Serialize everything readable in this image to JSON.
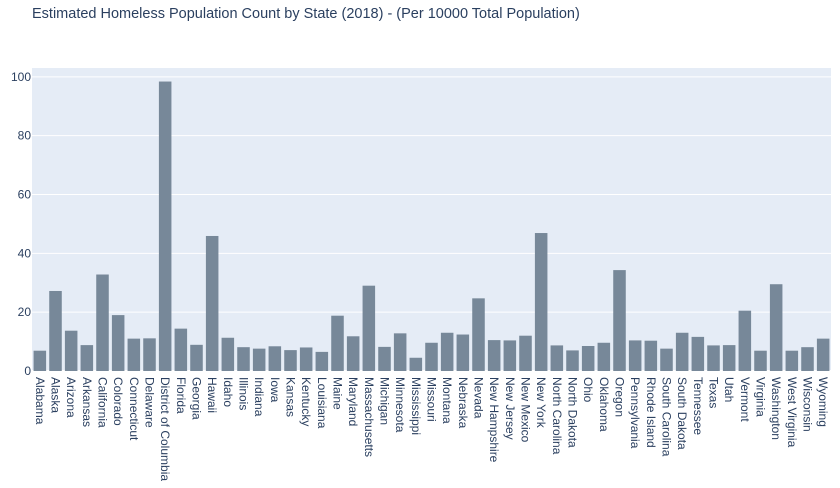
{
  "chart_data": {
    "type": "bar",
    "title": "Estimated Homeless Population Count by State (2018) - (Per 10000 Total Population)",
    "xlabel": "",
    "ylabel": "",
    "ylim": [
      0,
      103
    ],
    "yticks": [
      0,
      20,
      40,
      60,
      80,
      100
    ],
    "grid": true,
    "legend": "none",
    "bar_color": "#778899",
    "plot_bg": "#e5ecf6",
    "text_color": "#2a3f5f",
    "categories": [
      "Alabama",
      "Alaska",
      "Arizona",
      "Arkansas",
      "California",
      "Colorado",
      "Connecticut",
      "Delaware",
      "District of Columbia",
      "Florida",
      "Georgia",
      "Hawaii",
      "Idaho",
      "Illinois",
      "Indiana",
      "Iowa",
      "Kansas",
      "Kentucky",
      "Louisiana",
      "Maine",
      "Maryland",
      "Massachusetts",
      "Michigan",
      "Minnesota",
      "Mississippi",
      "Missouri",
      "Montana",
      "Nebraska",
      "Nevada",
      "New Hampshire",
      "New Jersey",
      "New Mexico",
      "New York",
      "North Carolina",
      "North Dakota",
      "Ohio",
      "Oklahoma",
      "Oregon",
      "Pennsylvania",
      "Rhode Island",
      "South Carolina",
      "South Dakota",
      "Tennessee",
      "Texas",
      "Utah",
      "Vermont",
      "Virginia",
      "Washington",
      "West Virginia",
      "Wisconsin",
      "Wyoming"
    ],
    "values": [
      6.9,
      27.2,
      13.7,
      8.8,
      32.8,
      19.0,
      11.0,
      11.1,
      98.4,
      14.4,
      8.9,
      45.9,
      11.3,
      8.1,
      7.6,
      8.4,
      7.1,
      8.0,
      6.5,
      18.8,
      11.8,
      29.0,
      8.2,
      12.8,
      4.5,
      9.6,
      13.0,
      12.4,
      24.7,
      10.5,
      10.4,
      12.0,
      46.9,
      8.7,
      7.0,
      8.5,
      9.6,
      34.3,
      10.4,
      10.3,
      7.6,
      13.0,
      11.6,
      8.7,
      8.8,
      20.5,
      6.9,
      29.5,
      6.9,
      8.1,
      11.0
    ]
  }
}
